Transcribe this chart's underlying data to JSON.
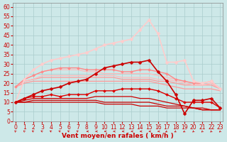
{
  "bg_color": "#cde8e8",
  "grid_color": "#aacccc",
  "xlabel": "Vent moyen/en rafales ( km/h )",
  "xlabel_color": "#cc0000",
  "ylim": [
    0,
    62
  ],
  "xlim": [
    -0.3,
    23.3
  ],
  "yticks": [
    0,
    5,
    10,
    15,
    20,
    25,
    30,
    35,
    40,
    45,
    50,
    55,
    60
  ],
  "xticks": [
    0,
    1,
    2,
    3,
    4,
    5,
    6,
    7,
    8,
    9,
    10,
    11,
    12,
    13,
    14,
    15,
    16,
    17,
    18,
    19,
    20,
    21,
    22,
    23
  ],
  "lines": [
    {
      "y": [
        10,
        10,
        10,
        10,
        10,
        10,
        10,
        10,
        10,
        10,
        9,
        9,
        9,
        9,
        8,
        8,
        8,
        7,
        7,
        7,
        7,
        6,
        6,
        6
      ],
      "color": "#cc0000",
      "lw": 0.9,
      "marker": null,
      "ms": 0,
      "zorder": 3
    },
    {
      "y": [
        10,
        10,
        11,
        11,
        11,
        11,
        11,
        11,
        11,
        11,
        10,
        10,
        10,
        10,
        10,
        10,
        9,
        8,
        8,
        8,
        7,
        7,
        6,
        6
      ],
      "color": "#cc0000",
      "lw": 0.9,
      "marker": null,
      "ms": 0,
      "zorder": 3
    },
    {
      "y": [
        10,
        11,
        12,
        12,
        12,
        12,
        12,
        12,
        12,
        13,
        13,
        13,
        13,
        13,
        12,
        12,
        11,
        10,
        9,
        8,
        7,
        6,
        6,
        6
      ],
      "color": "#cc0000",
      "lw": 0.9,
      "marker": null,
      "ms": 0,
      "zorder": 3
    },
    {
      "y": [
        10,
        12,
        13,
        13,
        14,
        13,
        14,
        14,
        14,
        16,
        16,
        16,
        17,
        17,
        17,
        17,
        16,
        14,
        12,
        10,
        10,
        10,
        10,
        7
      ],
      "color": "#dd0000",
      "lw": 1.0,
      "marker": "D",
      "ms": 2.0,
      "zorder": 5
    },
    {
      "y": [
        18,
        20,
        21,
        21,
        21,
        21,
        21,
        21,
        21,
        21,
        21,
        21,
        21,
        21,
        21,
        21,
        20,
        19,
        18,
        17,
        17,
        17,
        17,
        16
      ],
      "color": "#ff9999",
      "lw": 0.9,
      "marker": null,
      "ms": 0,
      "zorder": 3
    },
    {
      "y": [
        18,
        21,
        22,
        23,
        23,
        23,
        23,
        23,
        23,
        23,
        23,
        23,
        22,
        22,
        22,
        22,
        21,
        21,
        20,
        19,
        19,
        19,
        19,
        17
      ],
      "color": "#ff9999",
      "lw": 0.9,
      "marker": null,
      "ms": 0,
      "zorder": 3
    },
    {
      "y": [
        18,
        21,
        22,
        24,
        24,
        24,
        24,
        24,
        24,
        24,
        24,
        24,
        23,
        23,
        23,
        23,
        22,
        22,
        21,
        20,
        19,
        19,
        20,
        17
      ],
      "color": "#ffbbbb",
      "lw": 0.9,
      "marker": null,
      "ms": 0,
      "zorder": 3
    },
    {
      "y": [
        18,
        22,
        24,
        26,
        27,
        27,
        27,
        27,
        26,
        26,
        25,
        25,
        25,
        25,
        25,
        25,
        24,
        23,
        22,
        21,
        20,
        19,
        20,
        17
      ],
      "color": "#ffbbbb",
      "lw": 0.9,
      "marker": null,
      "ms": 0,
      "zorder": 3
    },
    {
      "y": [
        18,
        22,
        24,
        26,
        27,
        28,
        28,
        28,
        27,
        27,
        27,
        27,
        26,
        26,
        27,
        27,
        26,
        25,
        22,
        21,
        20,
        20,
        21,
        17
      ],
      "color": "#ff8888",
      "lw": 1.0,
      "marker": "D",
      "ms": 2.0,
      "zorder": 4
    },
    {
      "y": [
        10,
        22,
        27,
        30,
        32,
        33,
        34,
        35,
        36,
        38,
        40,
        41,
        42,
        43,
        48,
        53,
        46,
        31,
        31,
        32,
        21,
        20,
        21,
        17
      ],
      "color": "#ffcccc",
      "lw": 1.2,
      "marker": "D",
      "ms": 2.5,
      "zorder": 4
    },
    {
      "y": [
        10,
        12,
        14,
        16,
        17,
        18,
        20,
        21,
        22,
        25,
        28,
        29,
        30,
        31,
        31,
        32,
        26,
        21,
        14,
        4,
        11,
        11,
        12,
        7
      ],
      "color": "#cc0000",
      "lw": 1.2,
      "marker": "D",
      "ms": 2.5,
      "zorder": 6
    }
  ],
  "arrow_angles": [
    210,
    210,
    225,
    225,
    225,
    225,
    225,
    225,
    270,
    270,
    270,
    270,
    270,
    270,
    270,
    270,
    270,
    315,
    315,
    315,
    330,
    330,
    330,
    330
  ],
  "arrow_color": "#cc0000",
  "tick_fontsize": 5.5,
  "xlabel_fontsize": 6.5,
  "tick_color": "#cc0000",
  "spine_color": "#888888"
}
